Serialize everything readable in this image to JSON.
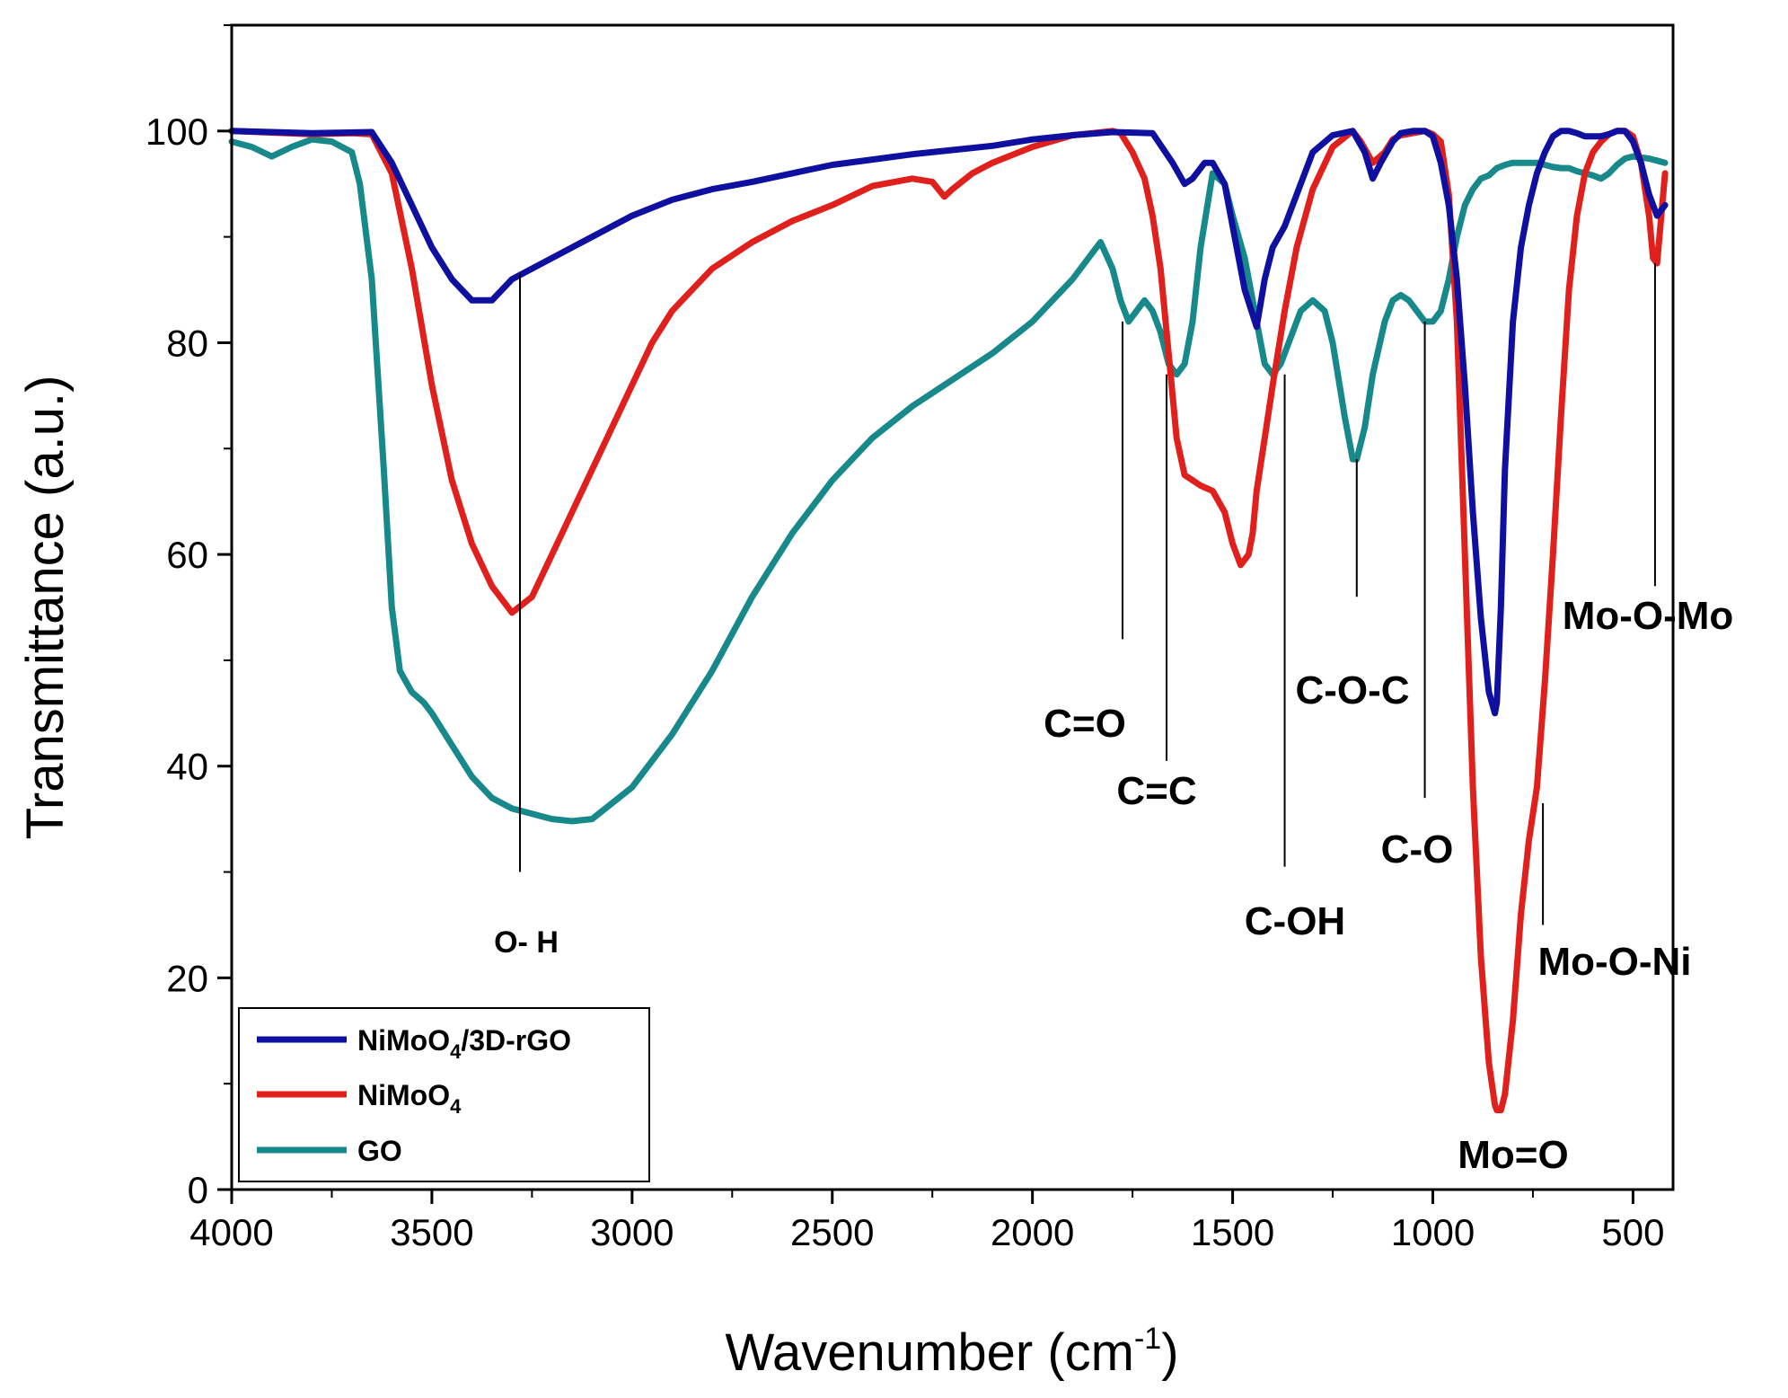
{
  "chart_data": {
    "type": "line",
    "title": "",
    "xlabel": "Wavenumber (cm",
    "xlabel_sup": "-1",
    "xlabel_close": ")",
    "ylabel": "Transmittance (a.u.)",
    "xlim": [
      4000,
      400
    ],
    "ylim": [
      0,
      110
    ],
    "x_ticks": [
      4000,
      3500,
      3000,
      2500,
      2000,
      1500,
      1000,
      500
    ],
    "y_ticks": [
      0,
      20,
      40,
      60,
      80,
      100
    ],
    "legend_position": "bottom-left",
    "series": [
      {
        "name": "NiMoO4/3D-rGO",
        "legend_parts": [
          "NiMoO",
          "4",
          "/3D-rGO"
        ],
        "color": "#1010a0",
        "x": [
          4000,
          3800,
          3650,
          3600,
          3550,
          3500,
          3450,
          3400,
          3350,
          3300,
          3200,
          3100,
          3000,
          2900,
          2800,
          2700,
          2600,
          2500,
          2400,
          2300,
          2200,
          2100,
          2000,
          1900,
          1800,
          1700,
          1650,
          1620,
          1600,
          1570,
          1550,
          1520,
          1500,
          1470,
          1440,
          1420,
          1400,
          1370,
          1340,
          1300,
          1250,
          1200,
          1170,
          1150,
          1130,
          1100,
          1080,
          1050,
          1020,
          1000,
          980,
          960,
          940,
          920,
          900,
          880,
          860,
          845,
          840,
          830,
          820,
          800,
          780,
          760,
          740,
          720,
          700,
          680,
          660,
          640,
          620,
          600,
          580,
          560,
          540,
          520,
          500,
          480,
          460,
          440,
          420
        ],
        "y": [
          100,
          99.8,
          99.9,
          97,
          93,
          89,
          86,
          84,
          84,
          86,
          88,
          90,
          92,
          93.5,
          94.5,
          95.2,
          96,
          96.8,
          97.3,
          97.8,
          98.2,
          98.6,
          99.2,
          99.6,
          99.9,
          99.8,
          97,
          95,
          95.5,
          97,
          97,
          95,
          91,
          85,
          81.5,
          86,
          89,
          91,
          94,
          98,
          99.6,
          100,
          98,
          95.5,
          97,
          99,
          99.8,
          100,
          100,
          99.5,
          97,
          93,
          86,
          76,
          64,
          54,
          47,
          45,
          46,
          55,
          68,
          82,
          89,
          93,
          96,
          98,
          99.5,
          100,
          100,
          99.8,
          99.5,
          99.5,
          99.5,
          99.7,
          100,
          100,
          99,
          97,
          94,
          92,
          93
        ]
      },
      {
        "name": "NiMoO4",
        "legend_parts": [
          "NiMoO",
          "4",
          ""
        ],
        "color": "#e0201c",
        "x": [
          4000,
          3800,
          3700,
          3650,
          3600,
          3550,
          3500,
          3450,
          3400,
          3350,
          3300,
          3250,
          3200,
          3150,
          3100,
          3000,
          2950,
          2900,
          2850,
          2800,
          2700,
          2600,
          2500,
          2400,
          2300,
          2250,
          2220,
          2200,
          2150,
          2100,
          2000,
          1900,
          1850,
          1800,
          1780,
          1750,
          1720,
          1700,
          1680,
          1660,
          1640,
          1620,
          1600,
          1580,
          1550,
          1520,
          1500,
          1480,
          1460,
          1450,
          1440,
          1420,
          1400,
          1370,
          1340,
          1300,
          1250,
          1200,
          1180,
          1150,
          1120,
          1100,
          1080,
          1050,
          1020,
          1000,
          980,
          960,
          940,
          920,
          900,
          880,
          860,
          845,
          840,
          830,
          820,
          800,
          780,
          760,
          740,
          720,
          700,
          680,
          660,
          640,
          620,
          600,
          580,
          560,
          540,
          520,
          500,
          480,
          460,
          450,
          440,
          420
        ],
        "y": [
          100,
          99.7,
          99.8,
          99.7,
          96,
          87,
          76,
          67,
          61,
          57,
          54.5,
          56,
          60,
          64,
          68,
          76,
          80,
          83,
          85,
          87,
          89.5,
          91.5,
          93,
          94.8,
          95.5,
          95.2,
          93.8,
          94.5,
          96,
          97,
          98.5,
          99.6,
          99.8,
          100,
          99.8,
          98,
          95.5,
          92,
          87,
          79,
          71,
          67.5,
          67,
          66.5,
          66,
          64,
          61,
          59,
          60,
          62,
          66,
          71,
          76,
          83,
          89,
          94.5,
          98.5,
          100,
          99,
          97,
          98,
          99.2,
          99.6,
          99.8,
          100,
          99.7,
          99,
          94,
          82,
          60,
          38,
          22,
          12,
          8,
          7.5,
          7.5,
          9,
          16,
          26,
          33,
          38,
          48,
          60,
          73,
          85,
          92,
          96,
          98,
          99,
          99.7,
          100,
          100,
          99.5,
          97,
          92,
          88,
          87.5,
          96
        ]
      },
      {
        "name": "GO",
        "legend_parts": [
          "GO",
          "",
          ""
        ],
        "color": "#17898a",
        "x": [
          4000,
          3950,
          3900,
          3850,
          3800,
          3750,
          3700,
          3680,
          3650,
          3620,
          3600,
          3580,
          3550,
          3520,
          3500,
          3450,
          3400,
          3350,
          3300,
          3250,
          3200,
          3150,
          3100,
          3000,
          2900,
          2800,
          2700,
          2600,
          2500,
          2400,
          2300,
          2200,
          2100,
          2000,
          1900,
          1850,
          1830,
          1800,
          1780,
          1760,
          1740,
          1720,
          1700,
          1680,
          1660,
          1640,
          1620,
          1600,
          1580,
          1550,
          1520,
          1500,
          1470,
          1450,
          1420,
          1400,
          1380,
          1360,
          1330,
          1300,
          1270,
          1250,
          1220,
          1200,
          1190,
          1170,
          1150,
          1120,
          1100,
          1080,
          1060,
          1040,
          1020,
          1000,
          980,
          960,
          940,
          920,
          900,
          880,
          860,
          840,
          820,
          800,
          780,
          760,
          740,
          720,
          700,
          680,
          660,
          640,
          620,
          600,
          580,
          560,
          540,
          520,
          500,
          480,
          460,
          440,
          420
        ],
        "y": [
          99,
          98.5,
          97.6,
          98.5,
          99.2,
          99,
          98,
          95,
          86,
          68,
          55,
          49,
          47,
          46,
          45,
          42,
          39,
          37,
          36,
          35.5,
          35,
          34.8,
          35,
          38,
          43,
          49,
          56,
          62,
          67,
          71,
          74,
          76.5,
          79,
          82,
          86,
          88.5,
          89.5,
          87,
          84,
          82,
          83,
          84,
          83,
          81,
          78,
          77,
          78,
          82,
          89,
          96,
          95,
          92,
          88,
          84,
          78,
          77,
          78,
          80,
          83,
          84,
          83,
          80,
          73,
          69,
          69,
          72,
          77,
          82,
          84,
          84.5,
          84,
          83,
          82,
          82,
          83,
          86,
          90,
          93,
          94.5,
          95.5,
          95.8,
          96.5,
          96.8,
          97,
          97,
          97,
          97,
          96.8,
          96.6,
          96.5,
          96.5,
          96.2,
          96,
          95.8,
          95.5,
          96,
          96.8,
          97.4,
          97.6,
          97.5,
          97.4,
          97.2,
          97
        ]
      }
    ],
    "annotations": [
      {
        "label": "O- H",
        "line_x": 3280,
        "line_y_top": 86.5,
        "line_y_bottom": 30
      },
      {
        "label": "C=O",
        "line_x": 1775,
        "line_y_top": 82,
        "line_y_bottom": 52
      },
      {
        "label": "C=C",
        "line_x": 1665,
        "line_y_top": 77,
        "line_y_bottom": 40.5
      },
      {
        "label": "C-OH",
        "line_x": 1370,
        "line_y_top": 77,
        "line_y_bottom": 30.5
      },
      {
        "label": "C-O-C",
        "line_x": 1190,
        "line_y_top": 69,
        "line_y_bottom": 56
      },
      {
        "label": "C-O",
        "line_x": 1020,
        "line_y_top": 82,
        "line_y_bottom": 37
      },
      {
        "label": "Mo-O-Ni",
        "line_x": 725,
        "line_y_top": 36.5,
        "line_y_bottom": 25
      },
      {
        "label": "Mo-O-Mo",
        "line_x": 445,
        "line_y_top": 87.5,
        "line_y_bottom": 57
      },
      {
        "label": "Mo=O",
        "line_x": null,
        "line_y_top": null,
        "line_y_bottom": null
      }
    ]
  }
}
